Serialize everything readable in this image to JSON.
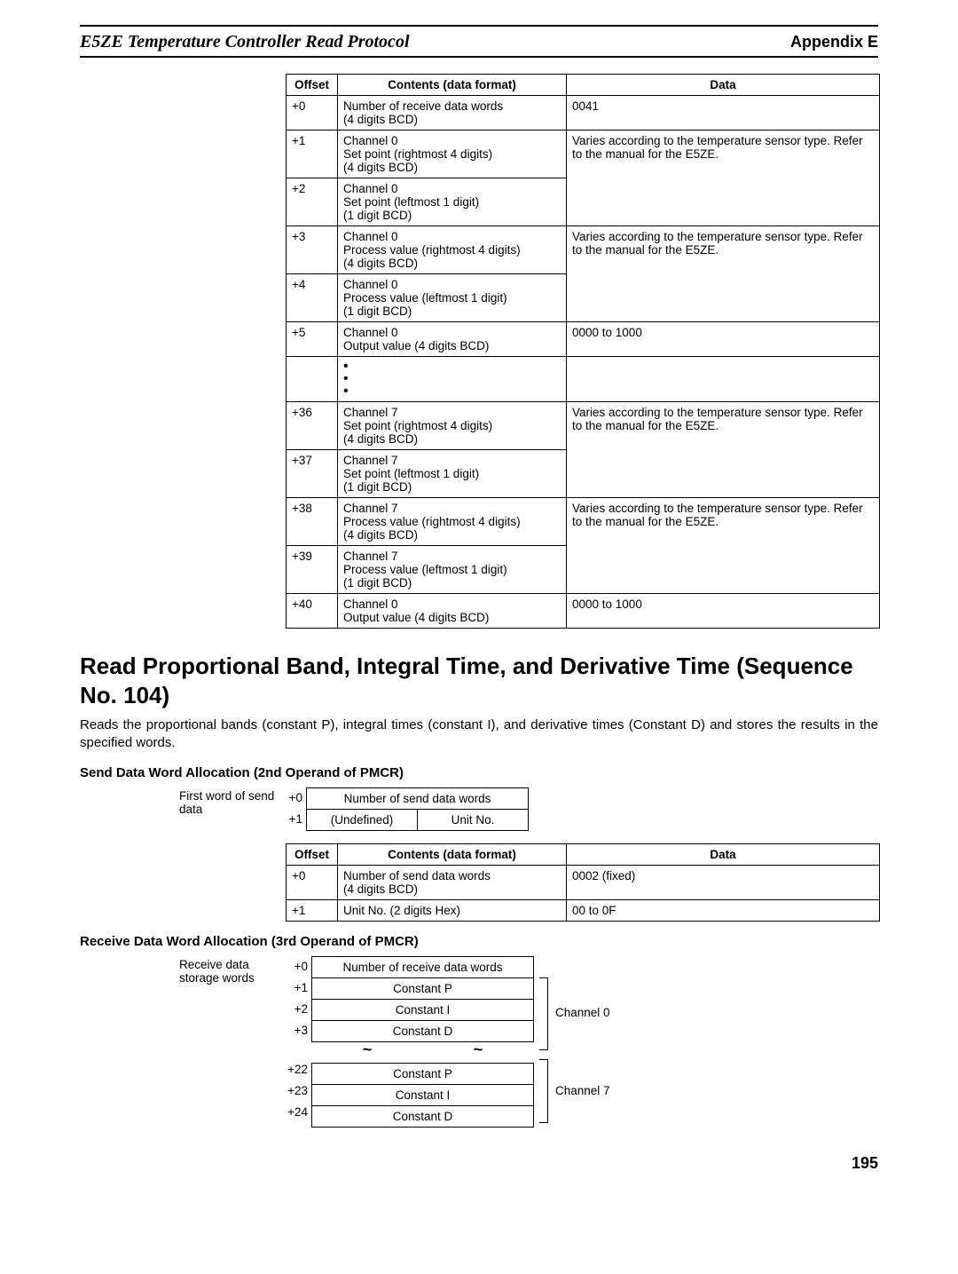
{
  "header": {
    "left": "E5ZE Temperature Controller Read Protocol",
    "right": "Appendix E"
  },
  "table1": {
    "headers": [
      "Offset",
      "Contents (data format)",
      "Data"
    ],
    "rows": [
      {
        "offset": "+0",
        "contents": "Number of receive data words\n(4 digits BCD)",
        "data": "0041",
        "data_rowspan": 1
      },
      {
        "offset": "+1",
        "contents": "Channel 0\nSet point (rightmost 4 digits)\n(4 digits BCD)",
        "data": "Varies according to the temperature sensor type. Refer to the manual for the E5ZE.",
        "data_rowspan": 2
      },
      {
        "offset": "+2",
        "contents": "Channel 0\nSet point (leftmost 1 digit)\n(1 digit BCD)"
      },
      {
        "offset": "+3",
        "contents": "Channel 0\nProcess value (rightmost 4 digits)\n(4 digits BCD)",
        "data": "Varies according to the temperature sensor type. Refer to the manual for the E5ZE.",
        "data_rowspan": 2
      },
      {
        "offset": "+4",
        "contents": "Channel 0\nProcess value (leftmost 1 digit)\n(1 digit BCD)"
      },
      {
        "offset": "+5",
        "contents": "Channel 0\nOutput value (4 digits BCD)",
        "data": "0000 to 1000",
        "data_rowspan": 1
      },
      {
        "dots": true
      },
      {
        "offset": "+36",
        "contents": "Channel 7\nSet point (rightmost 4 digits)\n(4 digits BCD)",
        "data": "Varies according to the temperature sensor type. Refer to the manual for the E5ZE.",
        "data_rowspan": 2
      },
      {
        "offset": "+37",
        "contents": "Channel 7\nSet point (leftmost 1 digit)\n(1 digit BCD)"
      },
      {
        "offset": "+38",
        "contents": "Channel 7\nProcess value (rightmost 4 digits)\n(4 digits BCD)",
        "data": "Varies according to the temperature sensor type. Refer to the manual for the E5ZE.",
        "data_rowspan": 2
      },
      {
        "offset": "+39",
        "contents": "Channel 7\nProcess value (leftmost 1 digit)\n(1 digit BCD)"
      },
      {
        "offset": "+40",
        "contents": "Channel 0\nOutput value (4 digits BCD)",
        "data": "0000 to 1000",
        "data_rowspan": 1
      }
    ]
  },
  "section_title": "Read Proportional Band, Integral Time, and Derivative Time (Sequence No. 104)",
  "section_body": "Reads the proportional bands (constant P), integral times (constant I), and derivative times (Constant D) and stores the results in the specified words.",
  "send_heading": "Send Data Word Allocation (2nd Operand of PMCR)",
  "send_alloc": {
    "label": "First word of send data",
    "rows": [
      {
        "offset": "+0",
        "cells": [
          "Number of send data words"
        ],
        "colspan": 2
      },
      {
        "offset": "+1",
        "cells": [
          "(Undefined)",
          "Unit No."
        ]
      }
    ]
  },
  "table2": {
    "headers": [
      "Offset",
      "Contents (data format)",
      "Data"
    ],
    "rows": [
      {
        "offset": "+0",
        "contents": "Number of send data words\n(4 digits BCD)",
        "data": "0002 (fixed)"
      },
      {
        "offset": "+1",
        "contents": "Unit No. (2 digits Hex)",
        "data": "00 to 0F"
      }
    ]
  },
  "recv_heading": "Receive Data Word Allocation (3rd Operand of PMCR)",
  "recv_alloc": {
    "label": "Receive data storage words",
    "group1_label": "Channel 0",
    "group2_label": "Channel 7",
    "rows_top": [
      {
        "offset": "+0",
        "text": "Number of receive data words"
      },
      {
        "offset": "+1",
        "text": "Constant P"
      },
      {
        "offset": "+2",
        "text": "Constant I"
      },
      {
        "offset": "+3",
        "text": "Constant D"
      }
    ],
    "rows_bottom": [
      {
        "offset": "+22",
        "text": "Constant P"
      },
      {
        "offset": "+23",
        "text": "Constant I"
      },
      {
        "offset": "+24",
        "text": "Constant D"
      }
    ]
  },
  "page_number": "195"
}
